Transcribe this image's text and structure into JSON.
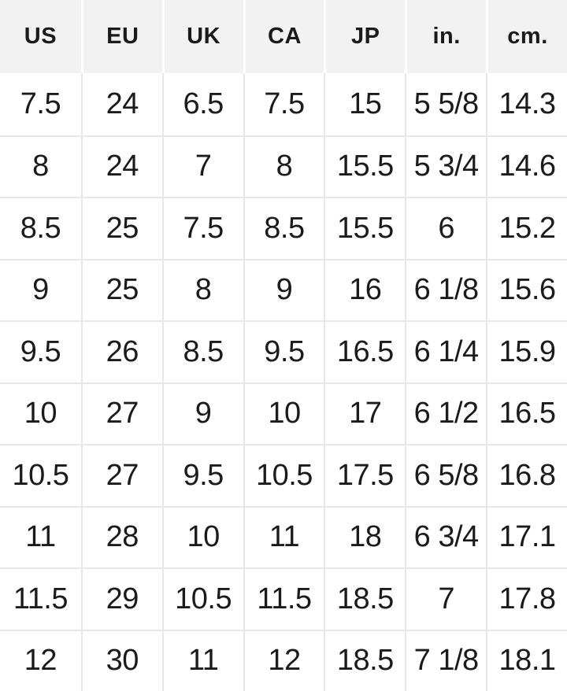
{
  "colors": {
    "page_background": "#ffffff",
    "header_background": "#f2f2f2",
    "grid_line": "#e8e8e8",
    "header_separator": "#ffffff",
    "text": "#1b1b1b"
  },
  "chart_data": {
    "type": "table",
    "columns": [
      "US",
      "EU",
      "UK",
      "CA",
      "JP",
      "in.",
      "cm."
    ],
    "rows": [
      [
        "7.5",
        "24",
        "6.5",
        "7.5",
        "15",
        "5 5/8",
        "14.3"
      ],
      [
        "8",
        "24",
        "7",
        "8",
        "15.5",
        "5 3/4",
        "14.6"
      ],
      [
        "8.5",
        "25",
        "7.5",
        "8.5",
        "15.5",
        "6",
        "15.2"
      ],
      [
        "9",
        "25",
        "8",
        "9",
        "16",
        "6 1/8",
        "15.6"
      ],
      [
        "9.5",
        "26",
        "8.5",
        "9.5",
        "16.5",
        "6 1/4",
        "15.9"
      ],
      [
        "10",
        "27",
        "9",
        "10",
        "17",
        "6 1/2",
        "16.5"
      ],
      [
        "10.5",
        "27",
        "9.5",
        "10.5",
        "17.5",
        "6 5/8",
        "16.8"
      ],
      [
        "11",
        "28",
        "10",
        "11",
        "18",
        "6 3/4",
        "17.1"
      ],
      [
        "11.5",
        "29",
        "10.5",
        "11.5",
        "18.5",
        "7",
        "17.8"
      ],
      [
        "12",
        "30",
        "11",
        "12",
        "18.5",
        "7 1/8",
        "18.1"
      ]
    ],
    "layout": {
      "grid": true,
      "column_count": 7,
      "row_count": 10,
      "header_position": "top"
    }
  }
}
